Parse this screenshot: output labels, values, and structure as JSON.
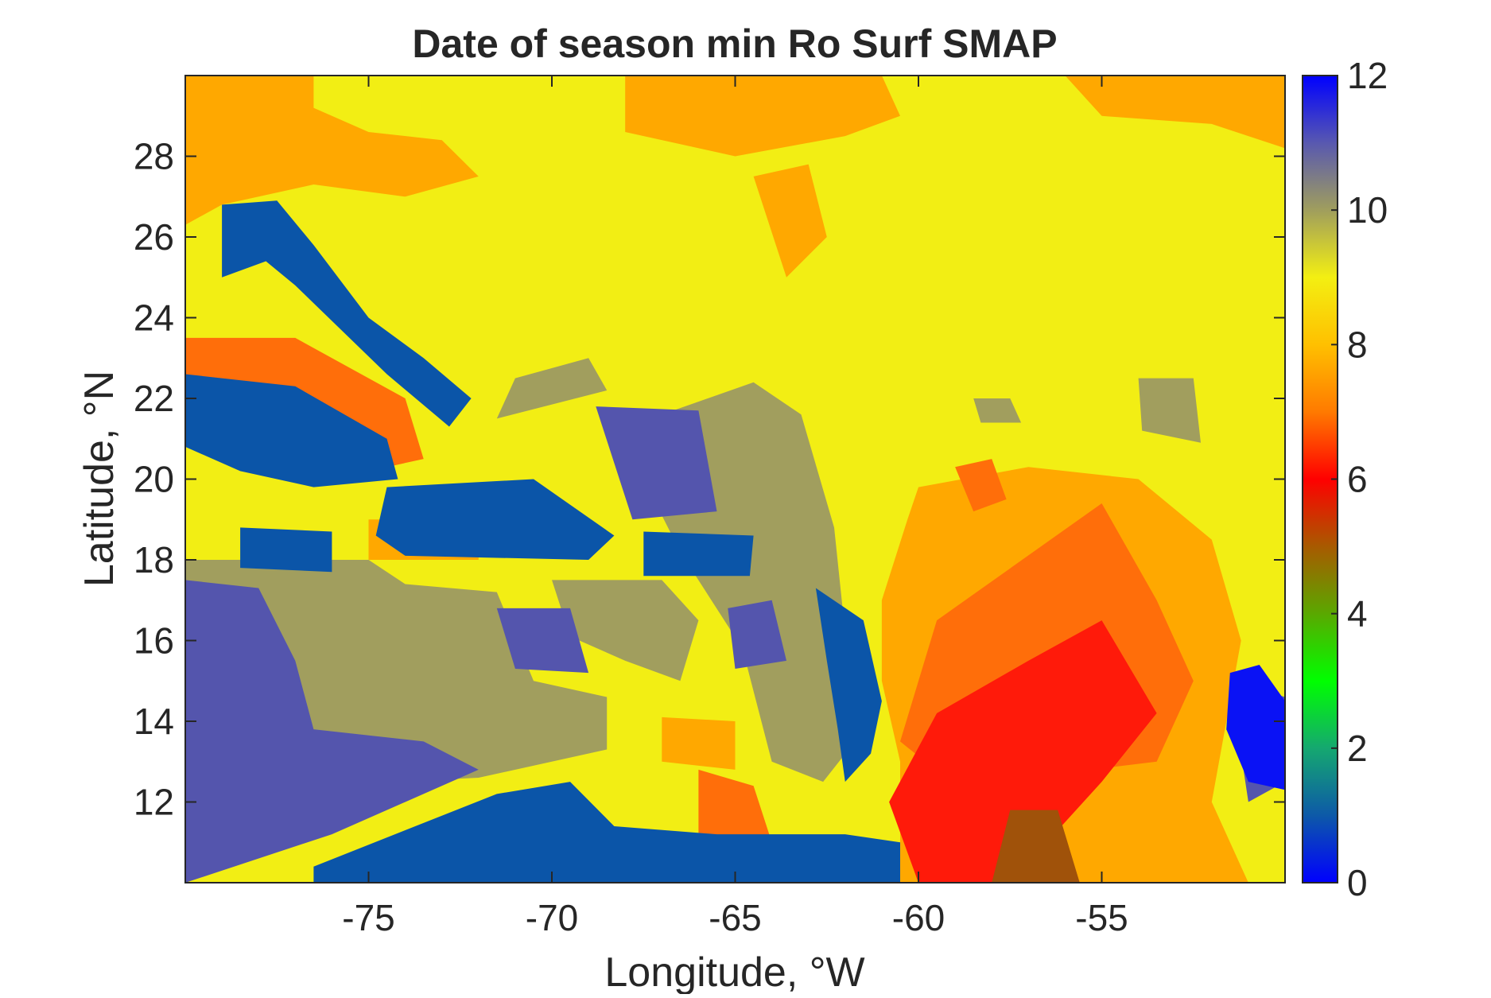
{
  "chart_data": {
    "type": "heatmap",
    "title": "Date of season min Ro Surf SMAP",
    "xlabel": "Longitude, °W",
    "ylabel": "Latitude, °N",
    "xlim": [
      -80,
      -50
    ],
    "ylim": [
      10,
      30
    ],
    "xticks": [
      -75,
      -70,
      -65,
      -60,
      -55
    ],
    "xtick_labels": [
      "-75",
      "-70",
      "-65",
      "-60",
      "-55"
    ],
    "yticks": [
      12,
      14,
      16,
      18,
      20,
      22,
      24,
      26,
      28
    ],
    "ytick_labels": [
      "12",
      "14",
      "16",
      "18",
      "20",
      "22",
      "24",
      "26",
      "28"
    ],
    "colorbar": {
      "min": 0,
      "max": 12,
      "ticks": [
        0,
        2,
        4,
        6,
        8,
        10,
        12
      ],
      "tick_labels": [
        "0",
        "2",
        "4",
        "6",
        "8",
        "10",
        "12"
      ],
      "colors": [
        "#0000ff",
        "#0d59a8",
        "#15a870",
        "#00ff00",
        "#5aa800",
        "#a85a00",
        "#ff0000",
        "#ff7a00",
        "#ffc000",
        "#f3ef12",
        "#a09e5d",
        "#5858b0",
        "#0000ff"
      ]
    },
    "value_colors": {
      "1": "#0b55a8",
      "3": "#3aa82a",
      "5": "#a0520a",
      "6": "#ff1a0a",
      "7": "#ff6e0a",
      "8": "#ffa800",
      "9": "#f2ee14",
      "10": "#a19e5e",
      "11": "#5455ad",
      "12": "#0a12f5"
    },
    "background_value": 9,
    "regions": [
      {
        "value": 8,
        "polygon": [
          [
            -80,
            30
          ],
          [
            -76.5,
            30
          ],
          [
            -76.5,
            29.2
          ],
          [
            -75,
            28.6
          ],
          [
            -73,
            28.4
          ],
          [
            -72,
            27.5
          ],
          [
            -74,
            27
          ],
          [
            -76.5,
            27.3
          ],
          [
            -79,
            26.8
          ],
          [
            -80,
            26.3
          ]
        ]
      },
      {
        "value": 8,
        "polygon": [
          [
            -68,
            30
          ],
          [
            -61,
            30
          ],
          [
            -60.5,
            29
          ],
          [
            -62,
            28.5
          ],
          [
            -65,
            28
          ],
          [
            -68,
            28.6
          ]
        ]
      },
      {
        "value": 8,
        "polygon": [
          [
            -56,
            30
          ],
          [
            -50,
            30
          ],
          [
            -50,
            28.2
          ],
          [
            -52,
            28.8
          ],
          [
            -55,
            29
          ]
        ]
      },
      {
        "value": 8,
        "polygon": [
          [
            -64.5,
            27.5
          ],
          [
            -63,
            27.8
          ],
          [
            -62.5,
            26
          ],
          [
            -63.6,
            25
          ]
        ]
      },
      {
        "value": 8,
        "polygon": [
          [
            -60,
            19.8
          ],
          [
            -57,
            20.3
          ],
          [
            -54,
            20
          ],
          [
            -52,
            18.5
          ],
          [
            -51.2,
            16
          ],
          [
            -52,
            12
          ],
          [
            -51,
            10
          ],
          [
            -60.5,
            10
          ],
          [
            -60.5,
            13
          ],
          [
            -61,
            15
          ],
          [
            -61,
            17
          ],
          [
            -60.3,
            19
          ]
        ]
      },
      {
        "value": 8,
        "polygon": [
          [
            -67,
            14.1
          ],
          [
            -65,
            14
          ],
          [
            -65,
            12.8
          ],
          [
            -67,
            13
          ]
        ]
      },
      {
        "value": 8,
        "polygon": [
          [
            -75,
            19
          ],
          [
            -72,
            19
          ],
          [
            -72,
            18
          ],
          [
            -75,
            18
          ]
        ]
      },
      {
        "value": 7,
        "polygon": [
          [
            -59.5,
            16.5
          ],
          [
            -55,
            19.4
          ],
          [
            -53.5,
            17
          ],
          [
            -52.5,
            15
          ],
          [
            -53.5,
            13
          ],
          [
            -59,
            12.4
          ],
          [
            -60.5,
            13.5
          ]
        ]
      },
      {
        "value": 7,
        "polygon": [
          [
            -59,
            20.3
          ],
          [
            -58,
            20.5
          ],
          [
            -57.6,
            19.5
          ],
          [
            -58.5,
            19.2
          ]
        ]
      },
      {
        "value": 7,
        "polygon": [
          [
            -66,
            12.8
          ],
          [
            -64.5,
            12.4
          ],
          [
            -64,
            11
          ],
          [
            -66,
            11.2
          ]
        ]
      },
      {
        "value": 7,
        "polygon": [
          [
            -80,
            23.5
          ],
          [
            -77,
            23.5
          ],
          [
            -74,
            22
          ],
          [
            -73.5,
            20.5
          ],
          [
            -75,
            20.2
          ],
          [
            -77,
            21
          ],
          [
            -80,
            21.5
          ]
        ]
      },
      {
        "value": 6,
        "polygon": [
          [
            -59.5,
            14.2
          ],
          [
            -57,
            15.5
          ],
          [
            -55,
            16.5
          ],
          [
            -53.5,
            14.2
          ],
          [
            -55,
            12.5
          ],
          [
            -56.5,
            11
          ],
          [
            -56.5,
            10
          ],
          [
            -60,
            10
          ],
          [
            -60.8,
            12
          ]
        ]
      },
      {
        "value": 5,
        "polygon": [
          [
            -57.5,
            11.8
          ],
          [
            -56.2,
            11.8
          ],
          [
            -55.6,
            10
          ],
          [
            -58,
            10
          ]
        ]
      },
      {
        "value": 10,
        "polygon": [
          [
            -80,
            18
          ],
          [
            -75,
            18
          ],
          [
            -74,
            17.4
          ],
          [
            -71.5,
            17.2
          ],
          [
            -70.5,
            15
          ],
          [
            -68.5,
            14.6
          ],
          [
            -68.5,
            13.3
          ],
          [
            -72,
            12.6
          ],
          [
            -76.5,
            12.4
          ],
          [
            -80,
            12.6
          ]
        ]
      },
      {
        "value": 10,
        "polygon": [
          [
            -70,
            17.5
          ],
          [
            -67,
            17.5
          ],
          [
            -66,
            16.5
          ],
          [
            -66.5,
            15
          ],
          [
            -68,
            15.5
          ],
          [
            -69.5,
            16.1
          ]
        ]
      },
      {
        "value": 10,
        "polygon": [
          [
            -67,
            21.6
          ],
          [
            -64.5,
            22.4
          ],
          [
            -63.2,
            21.6
          ],
          [
            -62.3,
            18.8
          ],
          [
            -62,
            16.2
          ],
          [
            -61.3,
            14
          ],
          [
            -62.6,
            12.5
          ],
          [
            -64,
            13
          ],
          [
            -64.8,
            15.8
          ],
          [
            -66.5,
            18.2
          ],
          [
            -67.5,
            20
          ]
        ]
      },
      {
        "value": 10,
        "polygon": [
          [
            -71,
            22.5
          ],
          [
            -69,
            23
          ],
          [
            -68.5,
            22.2
          ],
          [
            -71.5,
            21.5
          ]
        ]
      },
      {
        "value": 10,
        "polygon": [
          [
            -54,
            22.5
          ],
          [
            -52.5,
            22.5
          ],
          [
            -52.3,
            20.9
          ],
          [
            -53.9,
            21.2
          ]
        ]
      },
      {
        "value": 10,
        "polygon": [
          [
            -58.5,
            22
          ],
          [
            -57.5,
            22
          ],
          [
            -57.2,
            21.4
          ],
          [
            -58.3,
            21.4
          ]
        ]
      },
      {
        "value": 11,
        "polygon": [
          [
            -80,
            17.5
          ],
          [
            -78,
            17.3
          ],
          [
            -77,
            15.5
          ],
          [
            -76.5,
            13.8
          ],
          [
            -73.5,
            13.5
          ],
          [
            -72,
            12.8
          ],
          [
            -76,
            11.2
          ],
          [
            -80,
            10
          ]
        ]
      },
      {
        "value": 11,
        "polygon": [
          [
            -71.5,
            16.8
          ],
          [
            -69.5,
            16.8
          ],
          [
            -69,
            15.2
          ],
          [
            -71,
            15.3
          ]
        ]
      },
      {
        "value": 11,
        "polygon": [
          [
            -68.8,
            21.8
          ],
          [
            -66,
            21.7
          ],
          [
            -65.5,
            19.2
          ],
          [
            -67.8,
            19
          ]
        ]
      },
      {
        "value": 11,
        "polygon": [
          [
            -65.2,
            16.8
          ],
          [
            -64,
            17
          ],
          [
            -63.6,
            15.5
          ],
          [
            -65,
            15.3
          ]
        ]
      },
      {
        "value": 11,
        "polygon": [
          [
            -51.5,
            15
          ],
          [
            -50,
            14.6
          ],
          [
            -50,
            12.5
          ],
          [
            -51,
            12
          ]
        ]
      },
      {
        "value": 12,
        "polygon": [
          [
            -51.5,
            15.2
          ],
          [
            -50.7,
            15.4
          ],
          [
            -50,
            14.5
          ],
          [
            -50,
            12.3
          ],
          [
            -51,
            12.5
          ],
          [
            -51.6,
            13.8
          ]
        ]
      },
      {
        "value": 1,
        "polygon": [
          [
            -79,
            26.8
          ],
          [
            -77.5,
            26.9
          ],
          [
            -76.5,
            25.8
          ],
          [
            -75,
            24
          ],
          [
            -73.5,
            23
          ],
          [
            -72.2,
            22
          ],
          [
            -72.8,
            21.3
          ],
          [
            -74.5,
            22.6
          ],
          [
            -77,
            24.8
          ],
          [
            -77.8,
            25.4
          ],
          [
            -79,
            25
          ]
        ]
      },
      {
        "value": 1,
        "polygon": [
          [
            -80,
            22.6
          ],
          [
            -77,
            22.3
          ],
          [
            -74.5,
            21
          ],
          [
            -74.2,
            20
          ],
          [
            -76.5,
            19.8
          ],
          [
            -78.5,
            20.2
          ],
          [
            -80,
            20.8
          ]
        ]
      },
      {
        "value": 1,
        "polygon": [
          [
            -74.5,
            19.8
          ],
          [
            -70.5,
            20
          ],
          [
            -68.3,
            18.6
          ],
          [
            -69,
            18
          ],
          [
            -74,
            18.1
          ],
          [
            -74.8,
            18.6
          ]
        ]
      },
      {
        "value": 1,
        "polygon": [
          [
            -78.5,
            18.8
          ],
          [
            -76,
            18.7
          ],
          [
            -76,
            17.7
          ],
          [
            -78.5,
            17.8
          ]
        ]
      },
      {
        "value": 1,
        "polygon": [
          [
            -67.5,
            18.7
          ],
          [
            -64.5,
            18.6
          ],
          [
            -64.6,
            17.6
          ],
          [
            -67.5,
            17.6
          ]
        ]
      },
      {
        "value": 1,
        "polygon": [
          [
            -62.8,
            17.3
          ],
          [
            -61.5,
            16.5
          ],
          [
            -61,
            14.5
          ],
          [
            -61.3,
            13.2
          ],
          [
            -62,
            12.5
          ],
          [
            -62.2,
            13.8
          ],
          [
            -62.5,
            15.5
          ]
        ]
      },
      {
        "value": 1,
        "polygon": [
          [
            -76.5,
            10.4
          ],
          [
            -74,
            11.3
          ],
          [
            -71.5,
            12.2
          ],
          [
            -69.5,
            12.5
          ],
          [
            -68.3,
            11.4
          ],
          [
            -65.5,
            11.2
          ],
          [
            -62,
            11.2
          ],
          [
            -60.5,
            11
          ],
          [
            -60.5,
            10
          ],
          [
            -76.5,
            10
          ]
        ]
      }
    ]
  }
}
